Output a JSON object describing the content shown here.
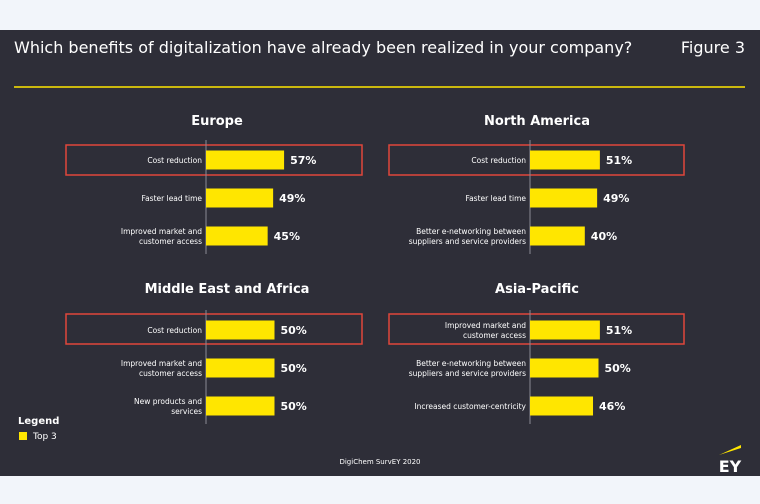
{
  "header": {
    "question": "Which benefits of digitalization have already been realized in your company?",
    "figure_label": "Figure 3"
  },
  "chart_data": [
    {
      "type": "bar",
      "title": "Europe",
      "categories": [
        [
          "Cost reduction"
        ],
        [
          "Faster lead time"
        ],
        [
          "Improved market and",
          "customer access"
        ]
      ],
      "values": [
        57,
        49,
        45
      ],
      "value_labels": [
        "57%",
        "49%",
        "45%"
      ],
      "highlighted_index": 0
    },
    {
      "type": "bar",
      "title": "North America",
      "categories": [
        [
          "Cost reduction"
        ],
        [
          "Faster lead time"
        ],
        [
          "Better e-networking between",
          "suppliers and service providers"
        ]
      ],
      "values": [
        51,
        49,
        40
      ],
      "value_labels": [
        "51%",
        "49%",
        "40%"
      ],
      "highlighted_index": 0
    },
    {
      "type": "bar",
      "title": "Middle East and Africa",
      "categories": [
        [
          "Cost reduction"
        ],
        [
          "Improved market and",
          "customer access"
        ],
        [
          "New products and",
          "services"
        ]
      ],
      "values": [
        50,
        50,
        50
      ],
      "value_labels": [
        "50%",
        "50%",
        "50%"
      ],
      "highlighted_index": 0
    },
    {
      "type": "bar",
      "title": "Asia-Pacific",
      "categories": [
        [
          "Improved market and",
          "customer access"
        ],
        [
          "Better e-networking between",
          "suppliers and service providers"
        ],
        [
          "Increased customer-centricity"
        ]
      ],
      "values": [
        51,
        50,
        46
      ],
      "value_labels": [
        "51%",
        "50%",
        "46%"
      ],
      "highlighted_index": 0
    }
  ],
  "legend": {
    "title": "Legend",
    "item": "Top 3"
  },
  "footer": {
    "source": "DigiChem SurvEY 2020",
    "logo_text": "EY"
  },
  "colors": {
    "background": "#2e2e38",
    "bar": "#ffe600",
    "highlight_box": "#e0463a",
    "text": "#ffffff",
    "rule": "#ffe600",
    "page": "#f2f5fa"
  }
}
